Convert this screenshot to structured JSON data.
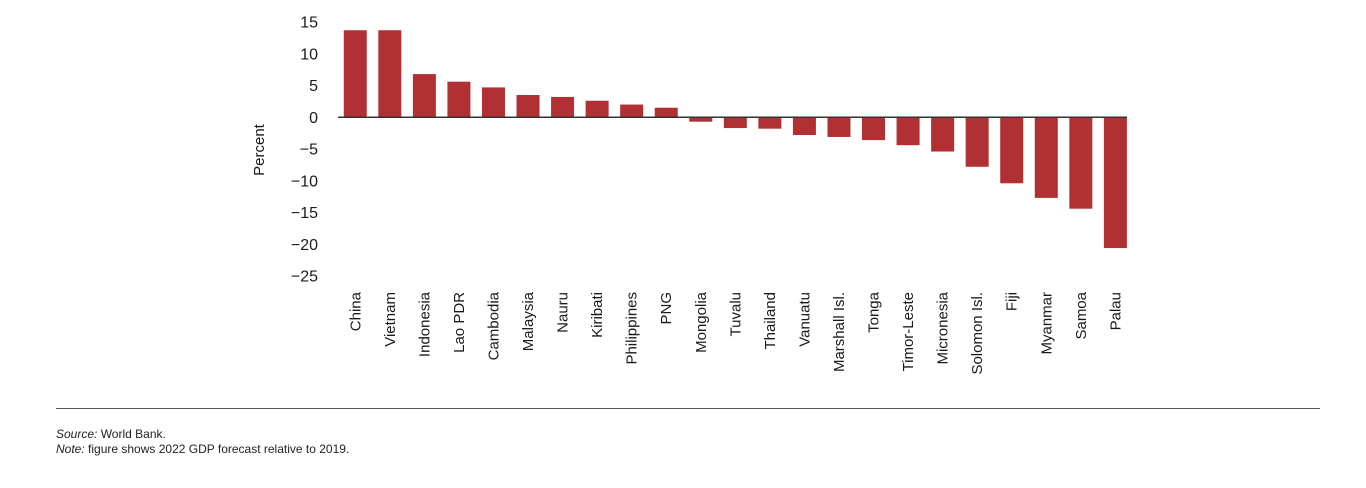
{
  "colors": {
    "bar": "#b03033",
    "axis": "#333333",
    "text": "#1a1a1a"
  },
  "chart_data": {
    "type": "bar",
    "title": "",
    "xlabel": "",
    "ylabel": "Percent",
    "ylim": [
      -25,
      15
    ],
    "yticks": [
      15,
      10,
      5,
      0,
      -5,
      -10,
      -15,
      -20,
      -25
    ],
    "ytick_labels": [
      "15",
      "10",
      "5",
      "0",
      "−5",
      "−10",
      "−15",
      "−20",
      "−25"
    ],
    "grid": false,
    "legend": "none",
    "categories": [
      "China",
      "Vietnam",
      "Indonesia",
      "Lao PDR",
      "Cambodia",
      "Malaysia",
      "Nauru",
      "Kiribati",
      "Philippines",
      "PNG",
      "Mongolia",
      "Tuvalu",
      "Thailand",
      "Vanuatu",
      "Marshall Isl.",
      "Tonga",
      "Timor-Leste",
      "Micronesia",
      "Solomon Isl.",
      "Fiji",
      "Myanmar",
      "Samoa",
      "Palau"
    ],
    "values": [
      13.7,
      13.7,
      6.8,
      5.6,
      4.7,
      3.5,
      3.2,
      2.6,
      2.0,
      1.5,
      -0.7,
      -1.7,
      -1.8,
      -2.8,
      -3.1,
      -3.6,
      -4.4,
      -5.4,
      -7.8,
      -10.4,
      -12.7,
      -14.4,
      -20.6
    ]
  },
  "notes": {
    "source_label": "Source:",
    "source_text": " World Bank.",
    "note_label": "Note:",
    "note_text": " figure shows 2022 GDP forecast relative to 2019."
  }
}
